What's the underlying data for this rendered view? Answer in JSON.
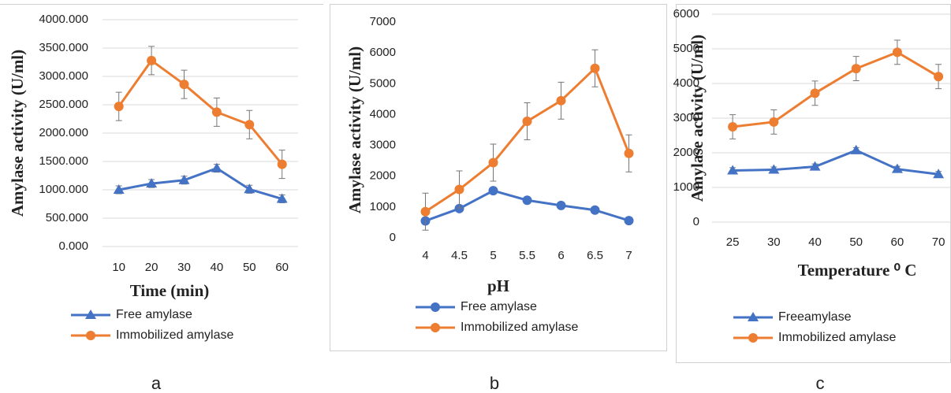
{
  "chart_data": [
    {
      "type": "line",
      "panel_label": "a",
      "x_label": "Time (min)",
      "y_label": "Amylase activity (U/ml)",
      "categories": [
        "10",
        "20",
        "30",
        "40",
        "50",
        "60"
      ],
      "ylim": [
        0,
        4000
      ],
      "yticks": [
        {
          "value": 0,
          "label": "0.000"
        },
        {
          "value": 500,
          "label": "500.000"
        },
        {
          "value": 1000,
          "label": "1000.000"
        },
        {
          "value": 1500,
          "label": "1500.000"
        },
        {
          "value": 2000,
          "label": "2000.000"
        },
        {
          "value": 2500,
          "label": "2500.000"
        },
        {
          "value": 3000,
          "label": "3000.000"
        },
        {
          "value": 3500,
          "label": "3500.000"
        },
        {
          "value": 4000,
          "label": "4000.000"
        }
      ],
      "grid": true,
      "series": [
        {
          "name": "Free amylase",
          "color": "#4472c4",
          "marker": "triangle",
          "values": [
            1000,
            1110,
            1170,
            1380,
            1010,
            840
          ],
          "errors": [
            70,
            70,
            70,
            70,
            70,
            70
          ]
        },
        {
          "name": "Immobilized amylase",
          "color": "#ed7d31",
          "marker": "circle",
          "values": [
            2470,
            3280,
            2860,
            2370,
            2150,
            1450
          ],
          "errors": [
            250,
            250,
            250,
            250,
            250,
            250
          ]
        }
      ]
    },
    {
      "type": "line",
      "panel_label": "b",
      "x_label": "pH",
      "y_label": "Amylase activity (U/ml)",
      "categories": [
        "4",
        "4.5",
        "5",
        "5.5",
        "6",
        "6.5",
        "7"
      ],
      "ylim": [
        0,
        7000
      ],
      "yticks": [
        0,
        1000,
        2000,
        3000,
        4000,
        5000,
        6000,
        7000
      ],
      "grid": false,
      "series": [
        {
          "name": "Free amylase",
          "color": "#4472c4",
          "marker": "circle",
          "values": [
            550,
            950,
            1530,
            1220,
            1050,
            900,
            560
          ],
          "errors": [
            80,
            80,
            80,
            80,
            80,
            80,
            80
          ]
        },
        {
          "name": "Immobilized amylase",
          "color": "#ed7d31",
          "marker": "circle",
          "values": [
            850,
            1570,
            2440,
            3780,
            4450,
            5500,
            2740
          ],
          "errors": [
            600,
            600,
            600,
            600,
            600,
            600,
            600
          ]
        }
      ]
    },
    {
      "type": "line",
      "panel_label": "c",
      "x_label": "Temperature ⁰ C",
      "y_label": "Amylase activity (U/ml)",
      "categories": [
        "25",
        "30",
        "40",
        "50",
        "60",
        "70"
      ],
      "ylim": [
        0,
        6000
      ],
      "yticks": [
        0,
        1000,
        2000,
        3000,
        4000,
        5000,
        6000
      ],
      "grid": true,
      "series": [
        {
          "name": "Freeamylase",
          "color": "#4472c4",
          "marker": "triangle",
          "values": [
            1490,
            1510,
            1600,
            2070,
            1530,
            1380
          ],
          "errors": [
            80,
            80,
            80,
            80,
            80,
            80
          ]
        },
        {
          "name": "Immobilized amylase",
          "color": "#ed7d31",
          "marker": "circle",
          "values": [
            2750,
            2890,
            3720,
            4430,
            4900,
            4200
          ],
          "errors": [
            350,
            350,
            350,
            350,
            350,
            350
          ]
        }
      ]
    }
  ]
}
